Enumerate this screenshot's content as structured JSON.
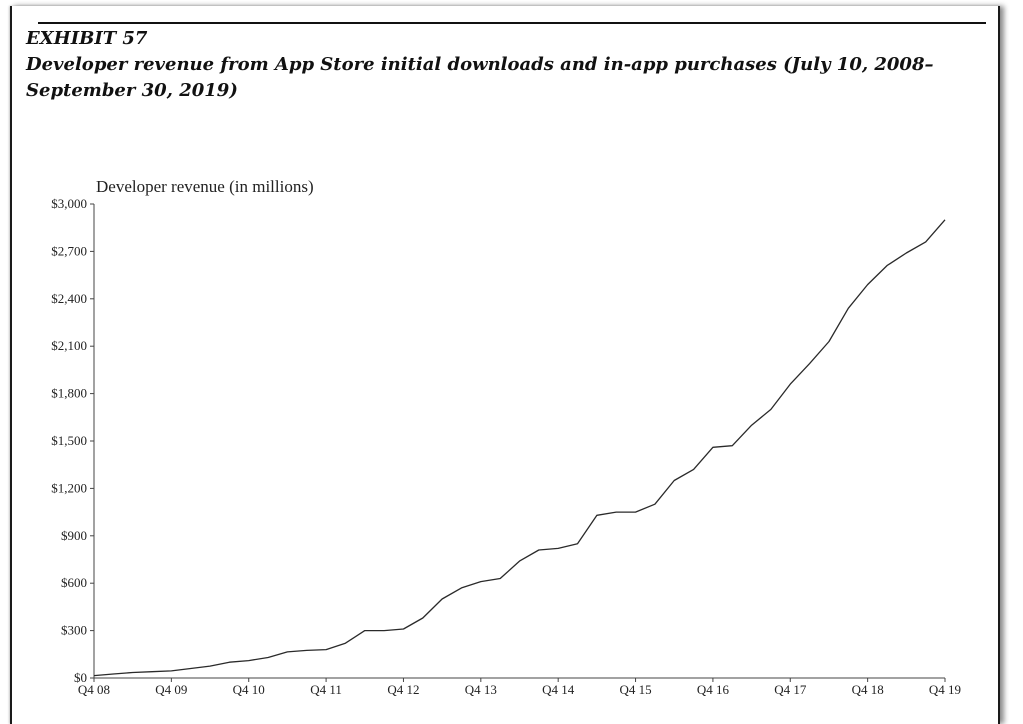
{
  "exhibit": "EXHIBIT 57",
  "title": "Developer revenue from App Store initial downloads and in-app purchases (July 10, 2008–September 30, 2019)",
  "chart_data": {
    "type": "line",
    "ylabel": "Developer revenue (in millions)",
    "xlabel": "",
    "x_ticks": [
      "Q4 08",
      "Q4 09",
      "Q4 10",
      "Q4 11",
      "Q4 12",
      "Q4 13",
      "Q4 14",
      "Q4 15",
      "Q4 16",
      "Q4 17",
      "Q4 18",
      "Q4 19"
    ],
    "y_ticks": [
      "$0",
      "$300",
      "$600",
      "$900",
      "$1,200",
      "$1,500",
      "$1,800",
      "$2,100",
      "$2,400",
      "$2,700",
      "$3,000"
    ],
    "ylim": [
      0,
      3000
    ],
    "x": [
      "Q4 08",
      "Q1 09",
      "Q2 09",
      "Q3 09",
      "Q4 09",
      "Q1 10",
      "Q2 10",
      "Q3 10",
      "Q4 10",
      "Q1 11",
      "Q2 11",
      "Q3 11",
      "Q4 11",
      "Q1 12",
      "Q2 12",
      "Q3 12",
      "Q4 12",
      "Q1 13",
      "Q2 13",
      "Q3 13",
      "Q4 13",
      "Q1 14",
      "Q2 14",
      "Q3 14",
      "Q4 14",
      "Q1 15",
      "Q2 15",
      "Q3 15",
      "Q4 15",
      "Q1 16",
      "Q2 16",
      "Q3 16",
      "Q4 16",
      "Q1 17",
      "Q2 17",
      "Q3 17",
      "Q4 17",
      "Q1 18",
      "Q2 18",
      "Q3 18",
      "Q4 18",
      "Q1 19",
      "Q2 19",
      "Q3 19",
      "Q4 19"
    ],
    "values": [
      15,
      25,
      35,
      40,
      45,
      60,
      75,
      100,
      110,
      130,
      165,
      175,
      180,
      220,
      300,
      300,
      310,
      380,
      500,
      570,
      610,
      630,
      740,
      810,
      820,
      850,
      1030,
      1050,
      1050,
      1100,
      1250,
      1320,
      1460,
      1470,
      1600,
      1700,
      1860,
      1990,
      2130,
      2340,
      2490,
      2610,
      2690,
      2760,
      2900
    ],
    "grid": false
  }
}
